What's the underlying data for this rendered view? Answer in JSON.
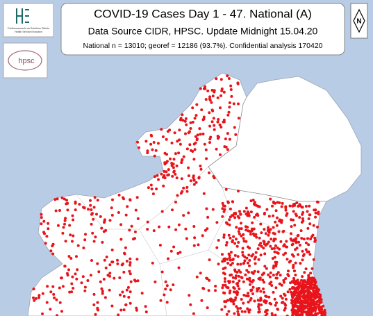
{
  "header": {
    "title": "COVID-19 Cases Day 1 - 47. National (A)",
    "source": "Data Source CIDR, HPSC. Update Midnight 15.04.20",
    "stats": "National  n = 13010; georef = 12186 (93.7%). Confidential analysis 170420"
  },
  "logos": {
    "hse_irish": "Feidhmeannacht na Seirbhíse Sláinte",
    "hse_english": "Health Service Executive",
    "hpsc": "hpsc"
  },
  "compass": "N"
}
